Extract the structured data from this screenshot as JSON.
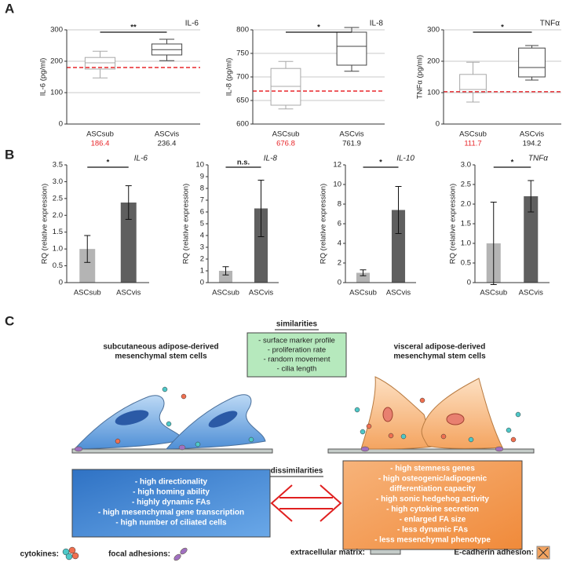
{
  "panel_labels": [
    "A",
    "B",
    "C"
  ],
  "chart_data": [
    {
      "type": "box",
      "title": "IL-6",
      "y_label": "IL-6 (pg/ml)",
      "categories": [
        "ASCsub",
        "ASCvis"
      ],
      "boxes": [
        {
          "min": 147,
          "q1": 175,
          "median": 195,
          "q3": 212,
          "max": 232
        },
        {
          "min": 202,
          "q1": 220,
          "median": 237,
          "q3": 255,
          "max": 270
        }
      ],
      "colors": [
        "#a8a8a8",
        "#444444"
      ],
      "means": [
        186.4,
        236.4
      ],
      "mean_colors": [
        "#e8262a",
        "#222222"
      ],
      "reference_line": 180,
      "reference_color": "#e8262a",
      "significance": "**",
      "ylim": [
        0,
        300
      ],
      "yticks": [
        0,
        100,
        200,
        300
      ],
      "grid": true
    },
    {
      "type": "box",
      "title": "IL-8",
      "y_label": "IL-8 (pg/ml)",
      "categories": [
        "ASCsub",
        "ASCvis"
      ],
      "boxes": [
        {
          "min": 632,
          "q1": 640,
          "median": 680,
          "q3": 718,
          "max": 733
        },
        {
          "min": 712,
          "q1": 725,
          "median": 765,
          "q3": 795,
          "max": 805
        }
      ],
      "colors": [
        "#a8a8a8",
        "#444444"
      ],
      "means": [
        676.8,
        761.9
      ],
      "mean_colors": [
        "#e8262a",
        "#222222"
      ],
      "reference_line": 670,
      "reference_color": "#e8262a",
      "significance": "*",
      "ylim": [
        600,
        800
      ],
      "yticks": [
        600,
        650,
        700,
        750,
        800
      ],
      "grid": true
    },
    {
      "type": "box",
      "title": "TNFα",
      "y_label": "TNFα (pg/ml)",
      "categories": [
        "ASCsub",
        "ASCvis"
      ],
      "boxes": [
        {
          "min": 70,
          "q1": 100,
          "median": 110,
          "q3": 158,
          "max": 197
        },
        {
          "min": 140,
          "q1": 150,
          "median": 180,
          "q3": 242,
          "max": 250
        }
      ],
      "colors": [
        "#a8a8a8",
        "#444444"
      ],
      "means": [
        111.7,
        194.2
      ],
      "mean_colors": [
        "#e8262a",
        "#222222"
      ],
      "reference_line": 103,
      "reference_color": "#e8262a",
      "significance": "*",
      "ylim": [
        0,
        300
      ],
      "yticks": [
        0,
        100,
        200,
        300
      ],
      "grid": true
    },
    {
      "type": "bar",
      "title": "IL-6",
      "y_label": "RQ (relative expression)",
      "categories": [
        "ASCsub",
        "ASCvis"
      ],
      "values": [
        1.0,
        2.38
      ],
      "errors": [
        0.4,
        0.5
      ],
      "colors": [
        "#b4b4b4",
        "#5f5f5f"
      ],
      "significance": "*",
      "ylim": [
        0,
        3.5
      ],
      "yticks": [
        0,
        0.5,
        {
          "value": 1,
          "label": "1.0"
        },
        1.5,
        {
          "value": 2,
          "label": "2.0"
        },
        2.5,
        {
          "value": 3,
          "label": "3.0"
        },
        3.5
      ],
      "grid": false
    },
    {
      "type": "bar",
      "title": "IL-8",
      "y_label": "RQ (relative expression)",
      "categories": [
        "ASCsub",
        "ASCvis"
      ],
      "values": [
        1.0,
        6.3
      ],
      "errors": [
        0.35,
        2.4
      ],
      "colors": [
        "#b4b4b4",
        "#5f5f5f"
      ],
      "significance": "n.s.",
      "ylim": [
        0,
        10
      ],
      "yticks": [
        0,
        1,
        2,
        3,
        4,
        5,
        6,
        7,
        8,
        9,
        10
      ],
      "grid": false
    },
    {
      "type": "bar",
      "title": "IL-10",
      "y_label": "RQ (relative expression)",
      "categories": [
        "ASCsub",
        "ASCvis"
      ],
      "values": [
        1.0,
        7.4
      ],
      "errors": [
        0.3,
        2.4
      ],
      "colors": [
        "#b4b4b4",
        "#5f5f5f"
      ],
      "significance": "*",
      "ylim": [
        0,
        12
      ],
      "yticks": [
        0,
        2,
        4,
        6,
        8,
        10,
        12
      ],
      "grid": false
    },
    {
      "type": "bar",
      "title": "TNFα",
      "y_label": "RQ (relative expression)",
      "categories": [
        "ASCsub",
        "ASCvis"
      ],
      "values": [
        1.0,
        2.2
      ],
      "errors": [
        1.05,
        0.4
      ],
      "colors": [
        "#b4b4b4",
        "#5f5f5f"
      ],
      "significance": "*",
      "ylim": [
        0,
        3.0
      ],
      "yticks": [
        0,
        0.5,
        {
          "value": 1,
          "label": "1.0"
        },
        1.5,
        {
          "value": 2,
          "label": "2.0"
        },
        2.5,
        {
          "value": 3,
          "label": "3.0"
        }
      ],
      "grid": false
    }
  ],
  "diagram": {
    "similarities": {
      "title": "similarities",
      "items": [
        "- surface marker profile",
        "- proliferation rate",
        "- random movement",
        "- cilia length"
      ]
    },
    "left_title": [
      "subcutaneous adipose-derived",
      "mesenchymal stem cells"
    ],
    "right_title": [
      "visceral adipose-derived",
      "mesenchymal stem cells"
    ],
    "dissimilarities_title": "dissimilarities",
    "left_items": [
      "- high directionality",
      "- high homing ability",
      "- highly dynamic FAs",
      "- high mesenchymal gene transcription",
      "- high number of ciliated cells"
    ],
    "right_items": [
      "- high stemness genes",
      "- high osteogenic/adipogenic",
      "differentiation capacity",
      "- high sonic hedgehog activity",
      "- high cytokine secretion",
      "- enlarged FA size",
      "- less dynamic FAs",
      "- less mesenchymal phenotype"
    ],
    "legend": [
      "cytokines:",
      "focal adhesions:",
      "extracellular matrix:",
      "E-cadherin adhesion:"
    ]
  }
}
